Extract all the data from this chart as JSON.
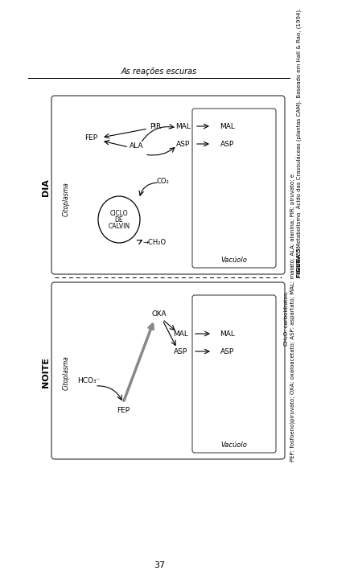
{
  "title": "As reações escuras",
  "page_number": "37",
  "bg": "#ffffff",
  "fig_bold": "FIGURA 5.",
  "fig_text1": " Metabolismo  Ácido das Crassuláceas (plantas CAM). Baseado em Hall & Rao, (1994).",
  "fig_text2": "PEP: fosfoeno)piruvato; OXA: oxaloacetato; ASP: aspartato; MAL: malato; ALA: alanina; PIR: piruvato; e",
  "fig_text3": "CH₂O: carboidratos.",
  "dia_label": "DIA",
  "noite_label": "NOITE",
  "citoplasma": "Citoplasma",
  "vacuolo": "Vacúolo",
  "ciclo1": "CICLO",
  "ciclo2": "DE",
  "ciclo3": "CALVIN",
  "pir": "PIR",
  "ala": "ALA",
  "fep": "FEP",
  "co2": "CO₂",
  "ch2o": "→CH₂O",
  "mal": "MAL",
  "asp": "ASP",
  "oxa": "OXA",
  "hco3": "HCO₃⁻"
}
